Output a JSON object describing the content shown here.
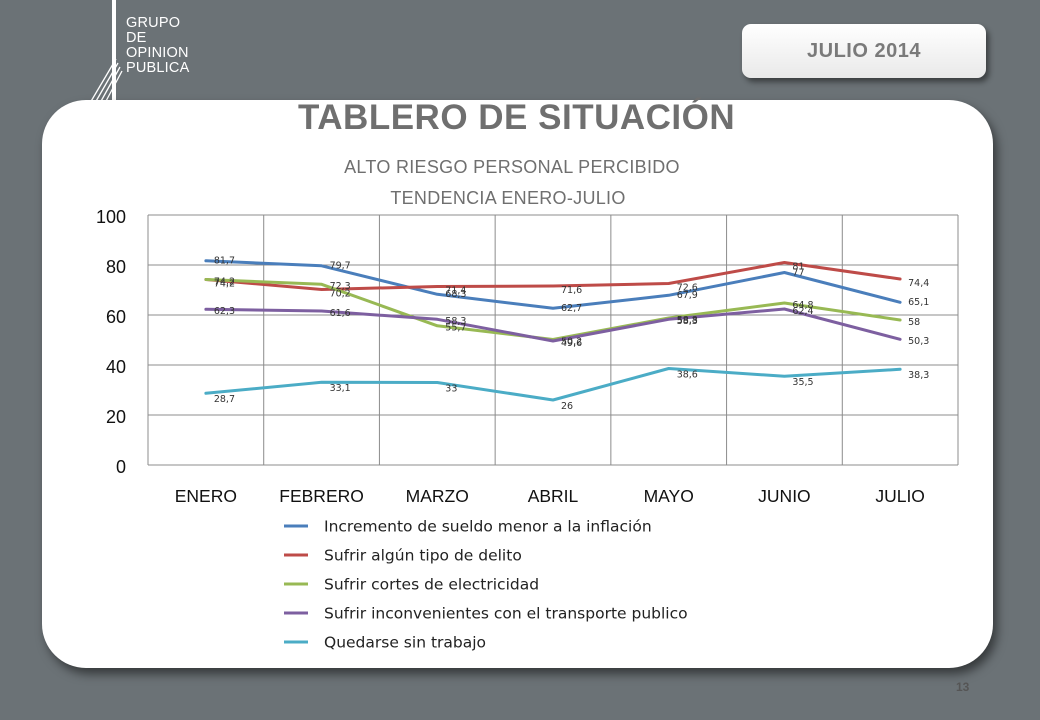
{
  "header": {
    "logo_lines": [
      "GRUPO",
      "DE",
      "OPINION",
      "PUBLICA"
    ],
    "date_label": "JULIO  2014"
  },
  "page": {
    "title": "TABLERO DE SITUACIÓN",
    "subtitle_1": "ALTO  RIESGO PERSONAL PERCIBIDO",
    "subtitle_2": "TENDENCIA ENERO-JULIO",
    "page_number": "13"
  },
  "chart_data": {
    "type": "line",
    "title": "ALTO  RIESGO PERSONAL PERCIBIDO",
    "subtitle": "TENDENCIA ENERO-JULIO",
    "categories": [
      "ENERO",
      "FEBRERO",
      "MARZO",
      "ABRIL",
      "MAYO",
      "JUNIO",
      "JULIO"
    ],
    "ylim": [
      0,
      100
    ],
    "yticks": [
      0,
      20,
      40,
      60,
      80,
      100
    ],
    "grid": true,
    "legend_position": "bottom",
    "series": [
      {
        "name": "Incremento de sueldo menor a la inflación",
        "color": "#4a7ebb",
        "values": [
          81.7,
          79.7,
          68.3,
          62.7,
          67.9,
          77,
          65.1
        ],
        "labels": [
          "81,7",
          "79,7",
          "68,3",
          "62,7",
          "67,9",
          "77",
          "65,1"
        ]
      },
      {
        "name": "Sufrir algún tipo de delito",
        "color": "#be4b48",
        "values": [
          74.2,
          70.2,
          71.4,
          71.6,
          72.6,
          81,
          74.4
        ],
        "labels": [
          "74,2",
          "70,2",
          "71,4",
          "71,6",
          "72,6",
          "81",
          "74,4"
        ]
      },
      {
        "name": "Sufrir cortes de electricidad",
        "color": "#98b954",
        "values": [
          74.2,
          72.3,
          55.7,
          50.2,
          58.8,
          64.8,
          58
        ],
        "labels": [
          "74,2",
          "72,3",
          "55,7",
          "50,2",
          "58,8",
          "64,8",
          "58"
        ]
      },
      {
        "name": "Sufrir inconvenientes con el transporte publico",
        "color": "#7d5fa0",
        "values": [
          62.3,
          61.6,
          58.3,
          49.6,
          58.3,
          62.4,
          50.3
        ],
        "labels": [
          "62,3",
          "61,6",
          "58,3",
          "49,6",
          "58,3",
          "62,4",
          "50,3"
        ]
      },
      {
        "name": "Quedarse sin trabajo",
        "color": "#4bacc6",
        "values": [
          28.7,
          33.1,
          33,
          26,
          38.6,
          35.5,
          38.3
        ],
        "labels": [
          "28,7",
          "33,1",
          "33",
          "26",
          "38,6",
          "35,5",
          "38,3"
        ]
      }
    ]
  }
}
